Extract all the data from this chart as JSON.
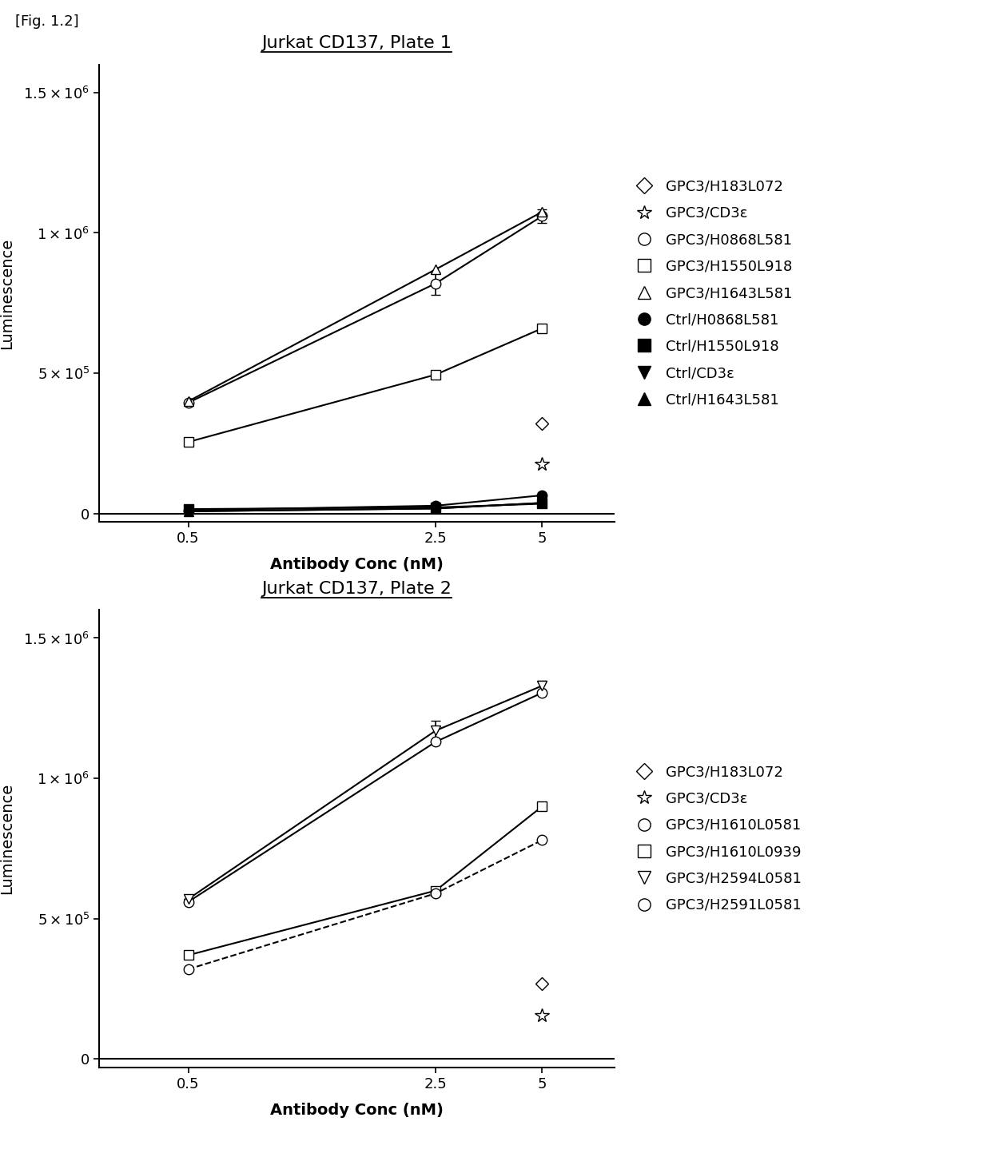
{
  "fig_label": "[Fig. 1.2]",
  "plate1": {
    "title": "Jurkat CD137, Plate 1",
    "xlabel": "Antibody Conc (nM)",
    "ylabel": "Luminescence",
    "x": [
      0.5,
      2.5,
      5
    ],
    "ylim": [
      -30000,
      1600000
    ],
    "yticks": [
      0,
      500000,
      1000000,
      1500000
    ],
    "series": [
      {
        "label": "GPC3/H183L072",
        "values": [
          null,
          null,
          320000
        ],
        "errors": [
          null,
          null,
          null
        ],
        "marker": "D",
        "fillstyle": "none",
        "linestyle": "none"
      },
      {
        "label": "GPC3/CD3ε",
        "values": [
          null,
          null,
          175000
        ],
        "errors": [
          null,
          null,
          null
        ],
        "marker": "*",
        "fillstyle": "none",
        "linestyle": "none"
      },
      {
        "label": "GPC3/H0868L581",
        "values": [
          395000,
          820000,
          1060000
        ],
        "errors": [
          null,
          40000,
          25000
        ],
        "marker": "o",
        "fillstyle": "none",
        "linestyle": "-"
      },
      {
        "label": "GPC3/H1550L918",
        "values": [
          255000,
          495000,
          660000
        ],
        "errors": [
          null,
          null,
          null
        ],
        "marker": "s",
        "fillstyle": "none",
        "linestyle": "-"
      },
      {
        "label": "GPC3/H1643L581",
        "values": [
          400000,
          870000,
          1075000
        ],
        "errors": [
          null,
          null,
          null
        ],
        "marker": "^",
        "fillstyle": "none",
        "linestyle": "-"
      },
      {
        "label": "Ctrl/H0868L581",
        "values": [
          12000,
          28000,
          65000
        ],
        "errors": [
          null,
          null,
          null
        ],
        "marker": "o",
        "fillstyle": "full",
        "linestyle": "-"
      },
      {
        "label": "Ctrl/H1550L918",
        "values": [
          16000,
          22000,
          35000
        ],
        "errors": [
          null,
          null,
          null
        ],
        "marker": "s",
        "fillstyle": "full",
        "linestyle": "-"
      },
      {
        "label": "Ctrl/CD3ε",
        "values": [
          8000,
          18000,
          38000
        ],
        "errors": [
          null,
          null,
          null
        ],
        "marker": "v",
        "fillstyle": "full",
        "linestyle": "-"
      },
      {
        "label": "Ctrl/H1643L581",
        "values": [
          8000,
          18000,
          38000
        ],
        "errors": [
          null,
          null,
          null
        ],
        "marker": "^",
        "fillstyle": "full",
        "linestyle": "-"
      }
    ]
  },
  "plate2": {
    "title": "Jurkat CD137, Plate 2",
    "xlabel": "Antibody Conc (nM)",
    "ylabel": "Luminescence",
    "x": [
      0.5,
      2.5,
      5
    ],
    "ylim": [
      -30000,
      1600000
    ],
    "yticks": [
      0,
      500000,
      1000000,
      1500000
    ],
    "series": [
      {
        "label": "GPC3/H183L072",
        "values": [
          null,
          null,
          270000
        ],
        "errors": [
          null,
          null,
          null
        ],
        "marker": "D",
        "fillstyle": "none",
        "linestyle": "none"
      },
      {
        "label": "GPC3/CD3ε",
        "values": [
          null,
          null,
          155000
        ],
        "errors": [
          null,
          null,
          null
        ],
        "marker": "*",
        "fillstyle": "none",
        "linestyle": "none"
      },
      {
        "label": "GPC3/H1610L0581",
        "values": [
          560000,
          1130000,
          1305000
        ],
        "errors": [
          null,
          null,
          null
        ],
        "marker": "o",
        "fillstyle": "none",
        "linestyle": "-"
      },
      {
        "label": "GPC3/H1610L0939",
        "values": [
          370000,
          600000,
          900000
        ],
        "errors": [
          null,
          null,
          null
        ],
        "marker": "s",
        "fillstyle": "none",
        "linestyle": "-"
      },
      {
        "label": "GPC3/H2594L0581",
        "values": [
          570000,
          1170000,
          1330000
        ],
        "errors": [
          null,
          35000,
          18000
        ],
        "marker": "v",
        "fillstyle": "none",
        "linestyle": "-"
      },
      {
        "label": "GPC3/H2591L0581",
        "values": [
          320000,
          590000,
          780000
        ],
        "errors": [
          null,
          null,
          null
        ],
        "marker": "o",
        "fillstyle": "none",
        "linestyle": "--"
      }
    ]
  }
}
